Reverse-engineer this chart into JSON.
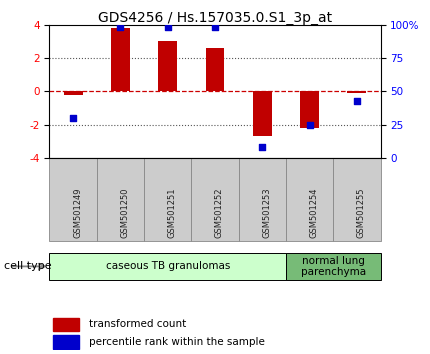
{
  "title": "GDS4256 / Hs.157035.0.S1_3p_at",
  "samples": [
    "GSM501249",
    "GSM501250",
    "GSM501251",
    "GSM501252",
    "GSM501253",
    "GSM501254",
    "GSM501255"
  ],
  "transformed_count": [
    -0.2,
    3.8,
    3.0,
    2.6,
    -2.7,
    -2.2,
    -0.1
  ],
  "percentile_rank": [
    30,
    98,
    98,
    98,
    8,
    25,
    43
  ],
  "ylim_left": [
    -4,
    4
  ],
  "ylim_right": [
    0,
    100
  ],
  "yticks_left": [
    -4,
    -2,
    0,
    2,
    4
  ],
  "yticks_right": [
    0,
    25,
    50,
    75,
    100
  ],
  "ytick_labels_right": [
    "0",
    "25",
    "50",
    "75",
    "100%"
  ],
  "bar_color": "#c00000",
  "dot_color": "#0000cc",
  "hline_red_color": "#cc0000",
  "dotted_line_color": "#555555",
  "cell_groups": [
    {
      "label": "caseous TB granulomas",
      "samples": [
        0,
        1,
        2,
        3,
        4
      ],
      "color": "#ccffcc"
    },
    {
      "label": "normal lung\nparenchyma",
      "samples": [
        5,
        6
      ],
      "color": "#77bb77"
    }
  ],
  "cell_type_label": "cell type",
  "legend_bar_label": "transformed count",
  "legend_dot_label": "percentile rank within the sample",
  "bar_width": 0.4,
  "title_fontsize": 10,
  "tick_fontsize": 7.5,
  "label_fontsize": 8,
  "xtick_bg_color": "#cccccc",
  "xtick_area_top": -4.0,
  "xtick_area_bottom": -8.5
}
